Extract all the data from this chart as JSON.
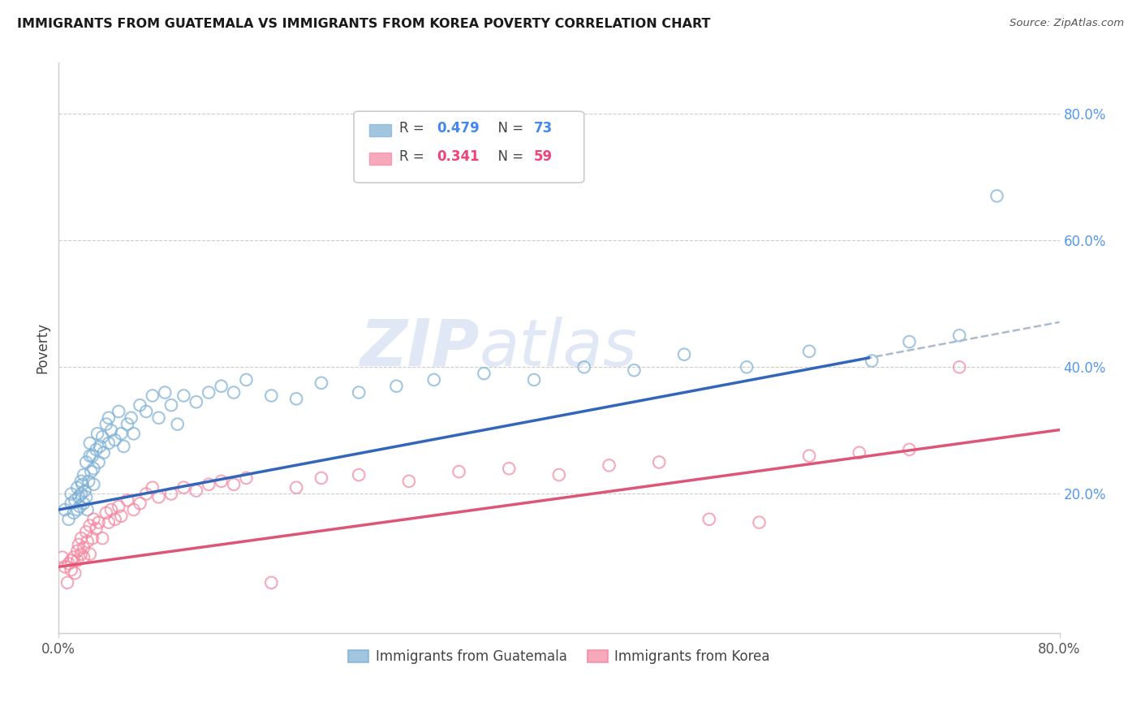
{
  "title": "IMMIGRANTS FROM GUATEMALA VS IMMIGRANTS FROM KOREA POVERTY CORRELATION CHART",
  "source": "Source: ZipAtlas.com",
  "ylabel": "Poverty",
  "xmin": 0.0,
  "xmax": 0.8,
  "ymin": -0.02,
  "ymax": 0.88,
  "guatemala_color": "#7BAFD4",
  "korea_color": "#F4859E",
  "guatemala_R": 0.479,
  "guatemala_N": 73,
  "korea_R": 0.341,
  "korea_N": 59,
  "guat_line_color": "#3366BB",
  "korea_line_color": "#DD5577",
  "dash_line_color": "#AABBCC",
  "watermark_color": "#E0E8F5",
  "grid_color": "#CCCCCC",
  "right_tick_color": "#5599EE",
  "legend_R_guat_color": "#4488EE",
  "legend_R_korea_color": "#EE4477",
  "legend_N_guat_color": "#4488EE",
  "legend_N_korea_color": "#EE4477",
  "guat_line_intercept": 0.175,
  "guat_line_slope": 0.37,
  "korea_line_intercept": 0.085,
  "korea_line_slope": 0.27,
  "guat_x": [
    0.005,
    0.008,
    0.01,
    0.01,
    0.012,
    0.013,
    0.015,
    0.015,
    0.016,
    0.017,
    0.018,
    0.018,
    0.019,
    0.02,
    0.02,
    0.021,
    0.022,
    0.022,
    0.023,
    0.024,
    0.025,
    0.025,
    0.026,
    0.027,
    0.028,
    0.028,
    0.03,
    0.031,
    0.032,
    0.033,
    0.035,
    0.036,
    0.038,
    0.04,
    0.04,
    0.042,
    0.045,
    0.048,
    0.05,
    0.052,
    0.055,
    0.058,
    0.06,
    0.065,
    0.07,
    0.075,
    0.08,
    0.085,
    0.09,
    0.095,
    0.1,
    0.11,
    0.12,
    0.13,
    0.14,
    0.15,
    0.17,
    0.19,
    0.21,
    0.24,
    0.27,
    0.3,
    0.34,
    0.38,
    0.42,
    0.46,
    0.5,
    0.55,
    0.6,
    0.65,
    0.68,
    0.72,
    0.75
  ],
  "guat_y": [
    0.175,
    0.16,
    0.185,
    0.2,
    0.17,
    0.19,
    0.175,
    0.21,
    0.195,
    0.18,
    0.22,
    0.2,
    0.215,
    0.185,
    0.23,
    0.205,
    0.195,
    0.25,
    0.175,
    0.22,
    0.26,
    0.28,
    0.235,
    0.26,
    0.215,
    0.24,
    0.27,
    0.295,
    0.25,
    0.275,
    0.29,
    0.265,
    0.31,
    0.28,
    0.32,
    0.3,
    0.285,
    0.33,
    0.295,
    0.275,
    0.31,
    0.32,
    0.295,
    0.34,
    0.33,
    0.355,
    0.32,
    0.36,
    0.34,
    0.31,
    0.355,
    0.345,
    0.36,
    0.37,
    0.36,
    0.38,
    0.355,
    0.35,
    0.375,
    0.36,
    0.37,
    0.38,
    0.39,
    0.38,
    0.4,
    0.395,
    0.42,
    0.4,
    0.425,
    0.41,
    0.44,
    0.45,
    0.67
  ],
  "korea_x": [
    0.003,
    0.005,
    0.007,
    0.008,
    0.01,
    0.01,
    0.012,
    0.013,
    0.015,
    0.015,
    0.016,
    0.018,
    0.018,
    0.02,
    0.02,
    0.022,
    0.023,
    0.025,
    0.025,
    0.027,
    0.028,
    0.03,
    0.032,
    0.035,
    0.038,
    0.04,
    0.042,
    0.045,
    0.048,
    0.05,
    0.055,
    0.06,
    0.065,
    0.07,
    0.075,
    0.08,
    0.09,
    0.1,
    0.11,
    0.12,
    0.13,
    0.14,
    0.15,
    0.17,
    0.19,
    0.21,
    0.24,
    0.28,
    0.32,
    0.36,
    0.4,
    0.44,
    0.48,
    0.52,
    0.56,
    0.6,
    0.64,
    0.68,
    0.72
  ],
  "korea_y": [
    0.1,
    0.085,
    0.06,
    0.09,
    0.095,
    0.08,
    0.1,
    0.075,
    0.11,
    0.095,
    0.12,
    0.105,
    0.13,
    0.1,
    0.115,
    0.14,
    0.125,
    0.105,
    0.15,
    0.13,
    0.16,
    0.145,
    0.155,
    0.13,
    0.17,
    0.155,
    0.175,
    0.16,
    0.18,
    0.165,
    0.19,
    0.175,
    0.185,
    0.2,
    0.21,
    0.195,
    0.2,
    0.21,
    0.205,
    0.215,
    0.22,
    0.215,
    0.225,
    0.06,
    0.21,
    0.225,
    0.23,
    0.22,
    0.235,
    0.24,
    0.23,
    0.245,
    0.25,
    0.16,
    0.155,
    0.26,
    0.265,
    0.27,
    0.4
  ]
}
